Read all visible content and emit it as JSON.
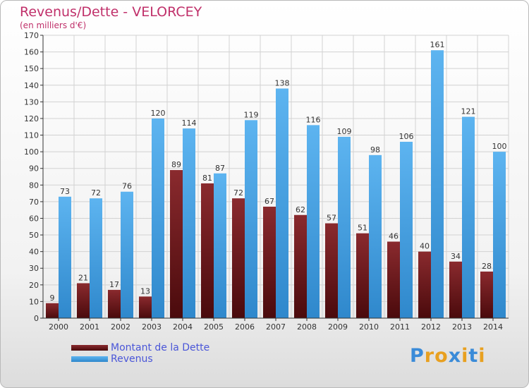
{
  "title": "Revenus/Dette - VELORCEY",
  "subtitle": "(en milliers d'€)",
  "colors": {
    "dette": "#6e1418",
    "revenus": "#3f9ee0",
    "title": "#c0306a"
  },
  "legend": {
    "dette": "Montant de la Dette",
    "revenus": "Revenus"
  },
  "logo": {
    "letters": [
      "P",
      "r",
      "o",
      "x",
      "i",
      "t",
      "i"
    ],
    "colors": [
      "#3a8bd8",
      "#e8a020",
      "#e8a020",
      "#3a8bd8",
      "#e8a020",
      "#3a8bd8",
      "#e8a020"
    ]
  },
  "chart_data": {
    "type": "bar",
    "title": "Revenus/Dette - VELORCEY",
    "subtitle": "(en milliers d'€)",
    "categories": [
      "2000",
      "2001",
      "2002",
      "2003",
      "2004",
      "2005",
      "2006",
      "2007",
      "2008",
      "2009",
      "2010",
      "2011",
      "2012",
      "2013",
      "2014"
    ],
    "series": [
      {
        "name": "Montant de la Dette",
        "values": [
          9,
          21,
          17,
          13,
          89,
          81,
          72,
          67,
          62,
          57,
          51,
          46,
          40,
          34,
          28
        ]
      },
      {
        "name": "Revenus",
        "values": [
          73,
          72,
          76,
          120,
          114,
          87,
          119,
          138,
          116,
          109,
          98,
          106,
          161,
          121,
          100
        ]
      }
    ],
    "ylim": [
      0,
      170
    ],
    "yticks": [
      0,
      10,
      20,
      30,
      40,
      50,
      60,
      70,
      80,
      90,
      100,
      110,
      120,
      130,
      140,
      150,
      160,
      170
    ],
    "grid": true,
    "legend_position": "bottom-left"
  }
}
